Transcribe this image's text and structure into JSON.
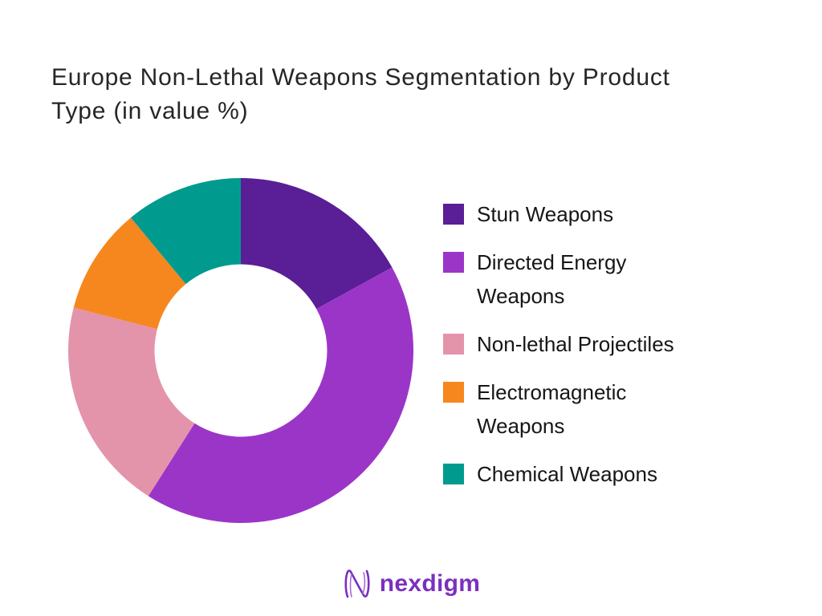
{
  "page": {
    "background": "#ffffff"
  },
  "title_lines": [
    "Europe Non-Lethal Weapons Segmentation by Product",
    "Type (in value %)"
  ],
  "chart_data": {
    "type": "pie",
    "subtype": "donut",
    "title": "Europe Non-Lethal Weapons Segmentation by Product Type (in value %)",
    "labels": [
      "Stun Weapons",
      "Directed Energy Weapons",
      "Non-lethal Projectiles",
      "Electromagnetic Weapons",
      "Chemical Weapons"
    ],
    "values": [
      17,
      42,
      20,
      10,
      11
    ],
    "unit": "percent",
    "colors": [
      "#5a1e96",
      "#9b35c8",
      "#e394aa",
      "#f6871f",
      "#009b8e"
    ],
    "start_angle_deg": 0,
    "direction": "clockwise",
    "inner_radius_ratio": 0.5,
    "legend_position": "right",
    "data_labels": false
  },
  "legend": {
    "items": [
      {
        "label": "Stun Weapons",
        "color": "#5a1e96"
      },
      {
        "label": "Directed Energy Weapons",
        "color": "#9b35c8"
      },
      {
        "label": "Non-lethal Projectiles",
        "color": "#e394aa"
      },
      {
        "label": "Electromagnetic Weapons",
        "color": "#f6871f"
      },
      {
        "label": "Chemical Weapons",
        "color": "#009b8e"
      }
    ]
  },
  "footer": {
    "brand": "nexdigm",
    "brand_color": "#7b2fbf"
  }
}
